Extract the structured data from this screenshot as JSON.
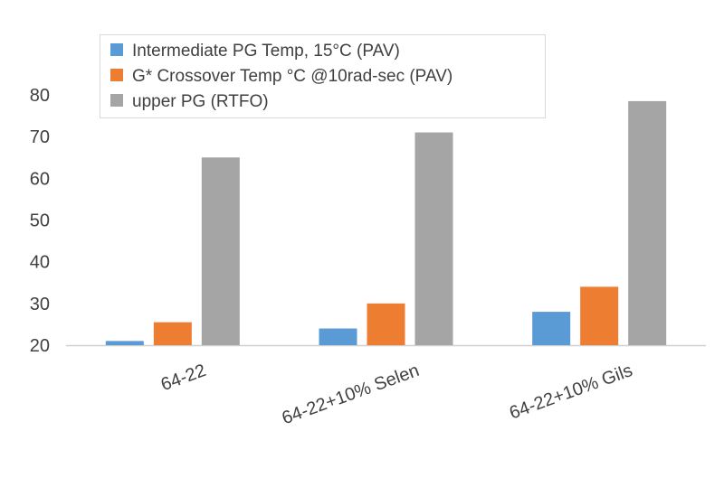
{
  "chart_data": {
    "type": "bar",
    "title": "",
    "xlabel": "",
    "ylabel": "",
    "categories": [
      "64-22",
      "64-22+10% Selen",
      "64-22+10% Gils"
    ],
    "series": [
      {
        "name": "Intermediate PG Temp, 15°C (PAV)",
        "color": "#5b9bd5",
        "values": [
          21,
          24,
          28
        ]
      },
      {
        "name": "G* Crossover Temp °C @10rad-sec (PAV)",
        "color": "#ed7d31",
        "values": [
          25.5,
          30,
          34
        ]
      },
      {
        "name": "upper PG (RTFO)",
        "color": "#a5a5a5",
        "values": [
          65,
          71,
          78.5
        ]
      }
    ],
    "ylim": [
      20,
      80
    ],
    "yticks": [
      "20",
      "30",
      "40",
      "50",
      "60",
      "70",
      "80"
    ],
    "grid": false,
    "legend_position": "top"
  }
}
